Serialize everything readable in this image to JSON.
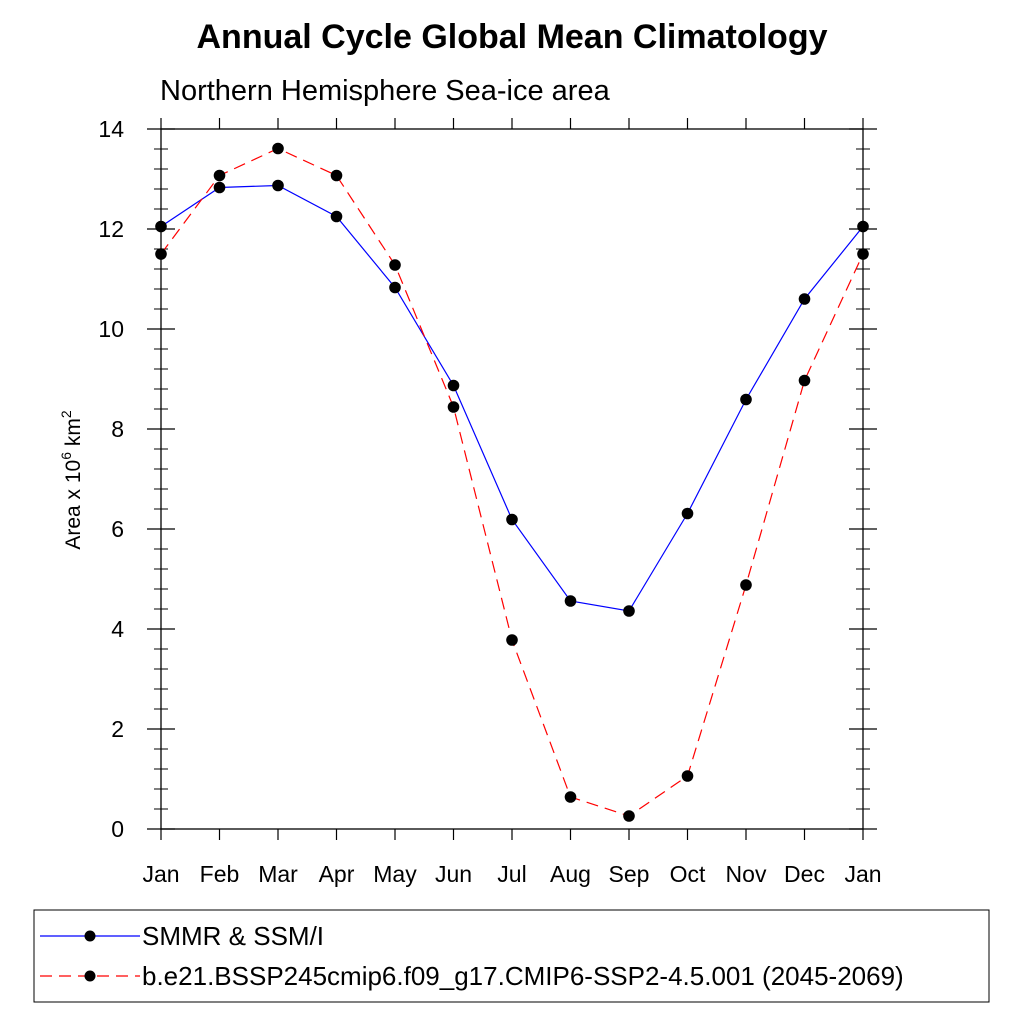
{
  "chart_data": {
    "type": "line",
    "title": "Annual Cycle Global Mean Climatology",
    "subtitle": "Northern Hemisphere Sea-ice area",
    "ylabel_main": "Area x 10",
    "ylabel_sup": "6",
    "ylabel_unit": " km",
    "ylabel_sup2": "2",
    "xlabel": "",
    "categories": [
      "Jan",
      "Feb",
      "Mar",
      "Apr",
      "May",
      "Jun",
      "Jul",
      "Aug",
      "Sep",
      "Oct",
      "Nov",
      "Dec",
      "Jan"
    ],
    "ylim": [
      0,
      14
    ],
    "yticks": [
      "0",
      "2",
      "4",
      "6",
      "8",
      "10",
      "12",
      "14"
    ],
    "grid": false,
    "legend_position": "bottom",
    "series": [
      {
        "name": "SMMR & SSM/I",
        "color": "#0000ff",
        "dash": "solid",
        "marker": "circle",
        "values": [
          12.05,
          12.83,
          12.87,
          12.25,
          10.83,
          8.87,
          6.19,
          4.56,
          4.36,
          6.31,
          8.59,
          10.6,
          12.05
        ]
      },
      {
        "name": "b.e21.BSSP245cmip6.f09_g17.CMIP6-SSP2-4.5.001 (2045-2069)",
        "color": "#ff0000",
        "dash": "dashed",
        "marker": "circle",
        "values": [
          11.5,
          13.07,
          13.61,
          13.07,
          11.28,
          8.44,
          3.78,
          0.64,
          0.26,
          1.06,
          4.88,
          8.97,
          11.5
        ]
      }
    ]
  }
}
